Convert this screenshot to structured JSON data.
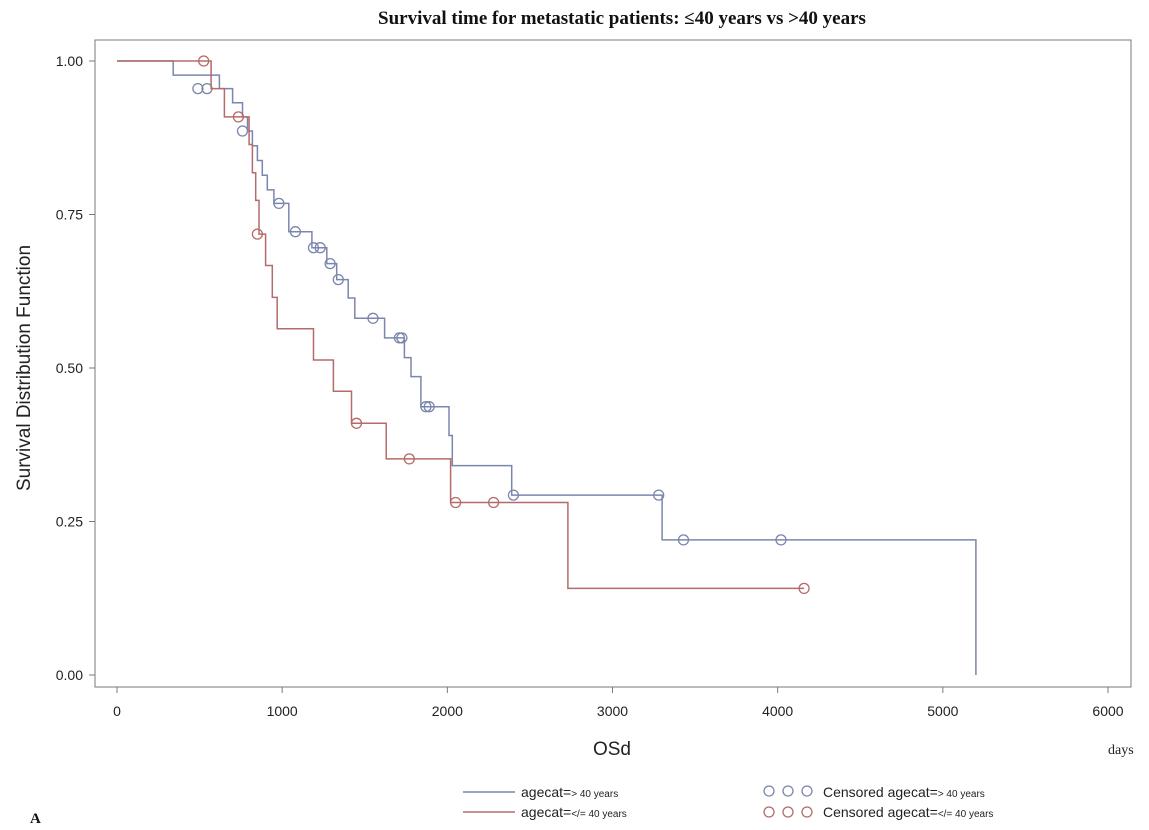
{
  "chart_data": {
    "type": "line",
    "step": true,
    "title": "Survival time for metastatic patients: ≤40 years vs >40 years",
    "xlabel": "OSd",
    "x_units": "days",
    "ylabel": "Survival Distribution Function",
    "xlim": [
      0,
      6000
    ],
    "ylim": [
      0,
      1
    ],
    "xticks": [
      "0",
      "1000",
      "2000",
      "3000",
      "4000",
      "5000",
      "6000"
    ],
    "yticks": [
      "0.00",
      "0.25",
      "0.50",
      "0.75",
      "1.00"
    ],
    "grid": false,
    "legend_position": "bottom",
    "panel_label": "A",
    "series": [
      {
        "name": "agecat=> 40 years",
        "legend_prefix": "agecat=",
        "legend_suffix": "> 40 years",
        "color": "#7b86ad",
        "censored_label_prefix": "Censored agecat=",
        "censored_label_suffix": "> 40 years",
        "points": [
          [
            0,
            1.0
          ],
          [
            340,
            1.0
          ],
          [
            340,
            0.977
          ],
          [
            620,
            0.977
          ],
          [
            620,
            0.955
          ],
          [
            700,
            0.955
          ],
          [
            700,
            0.932
          ],
          [
            760,
            0.932
          ],
          [
            760,
            0.909
          ],
          [
            790,
            0.909
          ],
          [
            790,
            0.886
          ],
          [
            820,
            0.886
          ],
          [
            820,
            0.862
          ],
          [
            850,
            0.862
          ],
          [
            850,
            0.838
          ],
          [
            880,
            0.838
          ],
          [
            880,
            0.814
          ],
          [
            910,
            0.814
          ],
          [
            910,
            0.79
          ],
          [
            950,
            0.79
          ],
          [
            950,
            0.768
          ],
          [
            1040,
            0.768
          ],
          [
            1040,
            0.722
          ],
          [
            1180,
            0.722
          ],
          [
            1180,
            0.696
          ],
          [
            1270,
            0.696
          ],
          [
            1270,
            0.67
          ],
          [
            1330,
            0.67
          ],
          [
            1330,
            0.644
          ],
          [
            1400,
            0.644
          ],
          [
            1400,
            0.614
          ],
          [
            1440,
            0.614
          ],
          [
            1440,
            0.581
          ],
          [
            1620,
            0.581
          ],
          [
            1620,
            0.549
          ],
          [
            1740,
            0.549
          ],
          [
            1740,
            0.517
          ],
          [
            1780,
            0.517
          ],
          [
            1780,
            0.486
          ],
          [
            1840,
            0.486
          ],
          [
            1840,
            0.437
          ],
          [
            2010,
            0.437
          ],
          [
            2010,
            0.39
          ],
          [
            2030,
            0.39
          ],
          [
            2030,
            0.341
          ],
          [
            2390,
            0.341
          ],
          [
            2390,
            0.293
          ],
          [
            3300,
            0.293
          ],
          [
            3300,
            0.22
          ],
          [
            5200,
            0.22
          ],
          [
            5200,
            0.0
          ]
        ],
        "censored": [
          [
            490,
            0.955
          ],
          [
            545,
            0.955
          ],
          [
            760,
            0.886
          ],
          [
            980,
            0.768
          ],
          [
            1080,
            0.722
          ],
          [
            1190,
            0.696
          ],
          [
            1230,
            0.696
          ],
          [
            1290,
            0.67
          ],
          [
            1340,
            0.644
          ],
          [
            1550,
            0.581
          ],
          [
            1710,
            0.549
          ],
          [
            1725,
            0.549
          ],
          [
            1870,
            0.437
          ],
          [
            1890,
            0.437
          ],
          [
            2400,
            0.293
          ],
          [
            3280,
            0.293
          ],
          [
            3430,
            0.22
          ],
          [
            4020,
            0.22
          ]
        ]
      },
      {
        "name": "agecat=</= 40 years",
        "legend_prefix": "agecat=",
        "legend_suffix": "</= 40 years",
        "color": "#b56b68",
        "censored_label_prefix": "Censored agecat=",
        "censored_label_suffix": "</= 40 years",
        "points": [
          [
            0,
            1.0
          ],
          [
            570,
            1.0
          ],
          [
            570,
            0.955
          ],
          [
            650,
            0.955
          ],
          [
            650,
            0.909
          ],
          [
            800,
            0.909
          ],
          [
            800,
            0.864
          ],
          [
            820,
            0.864
          ],
          [
            820,
            0.818
          ],
          [
            840,
            0.818
          ],
          [
            840,
            0.773
          ],
          [
            860,
            0.773
          ],
          [
            860,
            0.718
          ],
          [
            900,
            0.718
          ],
          [
            900,
            0.667
          ],
          [
            940,
            0.667
          ],
          [
            940,
            0.615
          ],
          [
            970,
            0.615
          ],
          [
            970,
            0.564
          ],
          [
            1190,
            0.564
          ],
          [
            1190,
            0.513
          ],
          [
            1310,
            0.513
          ],
          [
            1310,
            0.462
          ],
          [
            1420,
            0.462
          ],
          [
            1420,
            0.41
          ],
          [
            1630,
            0.41
          ],
          [
            1630,
            0.352
          ],
          [
            2020,
            0.352
          ],
          [
            2020,
            0.281
          ],
          [
            2730,
            0.281
          ],
          [
            2730,
            0.141
          ],
          [
            4160,
            0.141
          ]
        ],
        "censored": [
          [
            525,
            1.0
          ],
          [
            735,
            0.909
          ],
          [
            850,
            0.718
          ],
          [
            1450,
            0.41
          ],
          [
            1770,
            0.352
          ],
          [
            2050,
            0.281
          ],
          [
            2280,
            0.281
          ],
          [
            4160,
            0.141
          ]
        ]
      }
    ]
  }
}
